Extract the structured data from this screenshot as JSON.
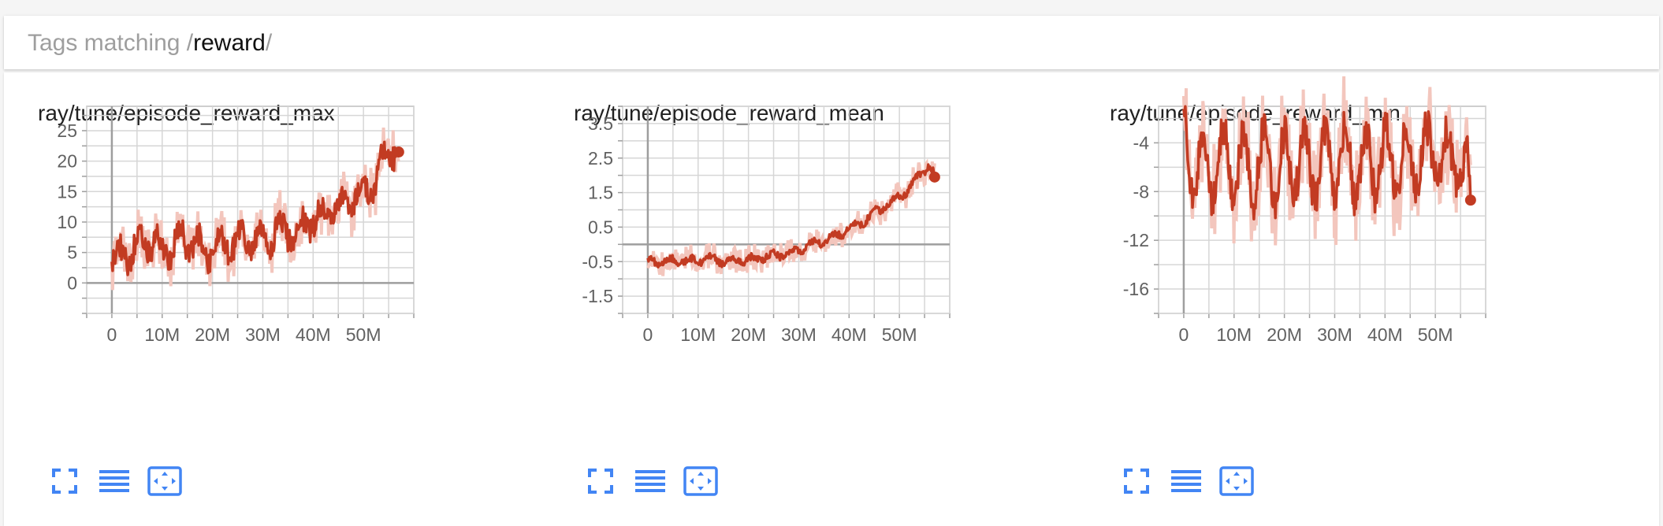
{
  "header": {
    "prefix": "Tags matching /",
    "regex": "reward",
    "suffix": "/"
  },
  "colors": {
    "line": "#c23b22",
    "band": "#f3c6bd",
    "grid": "#d6d6d6",
    "button": "#4285f4"
  },
  "icons": {
    "fullscreen": "fullscreen-icon",
    "log_scale": "lines-icon",
    "fit_domain": "fit-domain-icon"
  },
  "chart_data": [
    {
      "type": "line",
      "title": "ray/tune/episode_reward_max",
      "x_ticks": [
        "0",
        "10M",
        "20M",
        "30M",
        "40M",
        "50M"
      ],
      "x_tick_values": [
        0,
        10,
        20,
        30,
        40,
        50
      ],
      "x_unit": "M",
      "xlim": [
        -5,
        60
      ],
      "y_ticks": [
        "0",
        "5",
        "10",
        "15",
        "20",
        "25"
      ],
      "y_tick_values": [
        0,
        5,
        10,
        15,
        20,
        25
      ],
      "ylim": [
        -5,
        29
      ],
      "grid": true,
      "series": [
        {
          "x": [
            0,
            2,
            4,
            6,
            8,
            10,
            12,
            14,
            16,
            18,
            20,
            22,
            24,
            26,
            28,
            30,
            32,
            34,
            36,
            38,
            40,
            42,
            44,
            46,
            48,
            50,
            52,
            54,
            56,
            57
          ],
          "y": [
            2.5,
            5.5,
            4.5,
            7,
            6,
            6,
            5,
            8,
            6,
            6,
            5,
            7,
            6,
            7.5,
            6.5,
            6.5,
            8,
            9,
            8,
            9.5,
            10.5,
            11,
            12,
            13,
            14,
            15,
            16,
            20,
            22,
            21.5
          ]
        }
      ]
    },
    {
      "type": "line",
      "title": "ray/tune/episode_reward_mean",
      "x_ticks": [
        "0",
        "10M",
        "20M",
        "30M",
        "40M",
        "50M"
      ],
      "x_tick_values": [
        0,
        10,
        20,
        30,
        40,
        50
      ],
      "x_unit": "M",
      "xlim": [
        -5,
        60
      ],
      "y_ticks": [
        "3.5",
        "2.5",
        "1.5",
        "0.5",
        "-0.5",
        "-1.5"
      ],
      "y_tick_values": [
        3.5,
        2.5,
        1.5,
        0.5,
        -0.5,
        -1.5
      ],
      "ylim": [
        -2,
        4
      ],
      "grid": true,
      "series": [
        {
          "x": [
            0,
            2,
            4,
            6,
            8,
            10,
            12,
            14,
            16,
            18,
            20,
            22,
            24,
            26,
            28,
            30,
            32,
            34,
            36,
            38,
            40,
            42,
            44,
            46,
            48,
            50,
            52,
            54,
            56,
            57
          ],
          "y": [
            -0.5,
            -0.5,
            -0.5,
            -0.45,
            -0.5,
            -0.45,
            -0.4,
            -0.45,
            -0.5,
            -0.45,
            -0.45,
            -0.4,
            -0.35,
            -0.3,
            -0.25,
            -0.15,
            -0.05,
            0.05,
            0.15,
            0.3,
            0.45,
            0.6,
            0.8,
            1.0,
            1.2,
            1.4,
            1.6,
            2.0,
            2.3,
            1.95
          ]
        }
      ]
    },
    {
      "type": "line",
      "title": "ray/tune/episode_reward_min",
      "x_ticks": [
        "0",
        "10M",
        "20M",
        "30M",
        "40M",
        "50M"
      ],
      "x_tick_values": [
        0,
        10,
        20,
        30,
        40,
        50
      ],
      "x_unit": "M",
      "xlim": [
        -5,
        60
      ],
      "y_ticks": [
        "-4",
        "-8",
        "-12",
        "-16"
      ],
      "y_tick_values": [
        -4,
        -8,
        -12,
        -16
      ],
      "ylim": [
        -18,
        -1
      ],
      "grid": true,
      "series": [
        {
          "x": [
            0,
            2,
            4,
            6,
            8,
            10,
            12,
            14,
            16,
            18,
            20,
            22,
            24,
            26,
            28,
            30,
            32,
            34,
            36,
            38,
            40,
            42,
            44,
            46,
            48,
            50,
            52,
            54,
            56,
            57
          ],
          "y": [
            -3.5,
            -6.5,
            -5,
            -6.5,
            -5,
            -6,
            -5.5,
            -6.5,
            -5,
            -6.5,
            -5.5,
            -6,
            -5,
            -6.5,
            -5.5,
            -6,
            -5,
            -6.5,
            -5.5,
            -6,
            -5,
            -5.5,
            -5,
            -5.5,
            -5,
            -5,
            -5.5,
            -5.5,
            -6,
            -8.7
          ]
        }
      ]
    }
  ]
}
